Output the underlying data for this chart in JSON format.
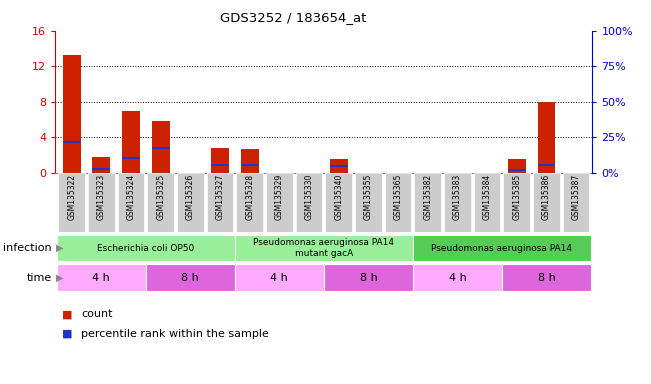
{
  "title": "GDS3252 / 183654_at",
  "samples": [
    "GSM135322",
    "GSM135323",
    "GSM135324",
    "GSM135325",
    "GSM135326",
    "GSM135327",
    "GSM135328",
    "GSM135329",
    "GSM135330",
    "GSM135340",
    "GSM135355",
    "GSM135365",
    "GSM135382",
    "GSM135383",
    "GSM135384",
    "GSM135385",
    "GSM135386",
    "GSM135387"
  ],
  "count_values": [
    13.3,
    1.8,
    7.0,
    5.8,
    0.0,
    2.8,
    2.7,
    0.0,
    0.0,
    1.5,
    0.0,
    0.0,
    0.0,
    0.0,
    0.0,
    1.5,
    8.0,
    0.0
  ],
  "percentile_values_scaled": [
    3.5,
    0.4,
    1.7,
    2.8,
    0.0,
    0.9,
    0.9,
    0.0,
    0.0,
    0.8,
    0.0,
    0.0,
    0.0,
    0.0,
    0.0,
    0.3,
    0.9,
    0.0
  ],
  "blue_bar_thickness": 0.4,
  "ylim_left": [
    0,
    16
  ],
  "ylim_right": [
    0,
    100
  ],
  "yticks_left": [
    0,
    4,
    8,
    12,
    16
  ],
  "yticks_right": [
    0,
    25,
    50,
    75,
    100
  ],
  "ytick_labels_right": [
    "0%",
    "25%",
    "50%",
    "75%",
    "100%"
  ],
  "bar_color_red": "#cc2200",
  "bar_color_blue": "#2233cc",
  "bg_color": "#ffffff",
  "grid_color": "#000000",
  "infection_groups": [
    {
      "label": "Escherichia coli OP50",
      "start": 0,
      "end": 6,
      "color": "#99ee99"
    },
    {
      "label": "Pseudomonas aeruginosa PA14\nmutant gacA",
      "start": 6,
      "end": 12,
      "color": "#99ee99"
    },
    {
      "label": "Pseudomonas aeruginosa PA14",
      "start": 12,
      "end": 18,
      "color": "#55cc55"
    }
  ],
  "time_groups": [
    {
      "label": "4 h",
      "start": 0,
      "end": 3,
      "color": "#ffaaff"
    },
    {
      "label": "8 h",
      "start": 3,
      "end": 6,
      "color": "#dd66dd"
    },
    {
      "label": "4 h",
      "start": 6,
      "end": 9,
      "color": "#ffaaff"
    },
    {
      "label": "8 h",
      "start": 9,
      "end": 12,
      "color": "#dd66dd"
    },
    {
      "label": "4 h",
      "start": 12,
      "end": 15,
      "color": "#ffaaff"
    },
    {
      "label": "8 h",
      "start": 15,
      "end": 18,
      "color": "#dd66dd"
    }
  ],
  "ylabel_left_color": "#cc0000",
  "ylabel_right_color": "#0000cc",
  "infection_label": "infection",
  "time_label": "time",
  "legend_count": "count",
  "legend_percentile": "percentile rank within the sample",
  "sample_bg_color": "#cccccc",
  "arrow_color": "#888888"
}
